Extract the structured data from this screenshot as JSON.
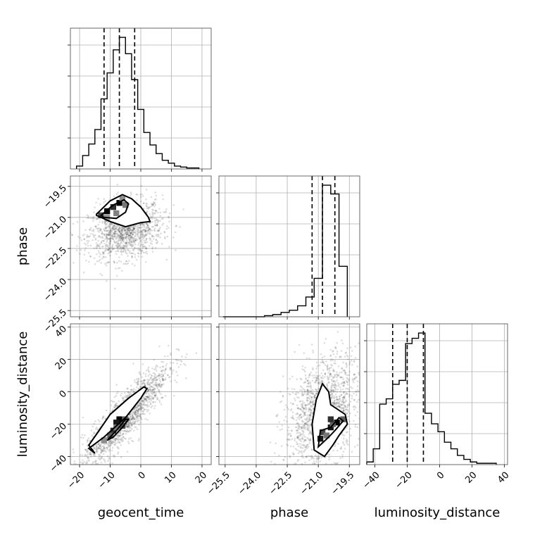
{
  "chart_data": {
    "type": "corner",
    "parameters": [
      "geocent_time",
      "phase",
      "luminosity_distance"
    ],
    "axes": {
      "geocent_time": {
        "range": [
          -23,
          23
        ],
        "ticks": [
          -20,
          -10,
          0,
          10,
          20
        ],
        "tick_labels": [
          "−20",
          "−10",
          "0",
          "10",
          "20"
        ]
      },
      "phase": {
        "range": [
          -25.8,
          -19.0
        ],
        "ticks": [
          -25.5,
          -24.0,
          -22.5,
          -21.0,
          -19.5
        ],
        "tick_labels": [
          "−25.5",
          "−24.0",
          "−22.5",
          "−21.0",
          "−19.5"
        ]
      },
      "luminosity_distance": {
        "range": [
          -45,
          42
        ],
        "ticks": [
          -40,
          -20,
          0,
          20,
          40
        ],
        "tick_labels": [
          "−40",
          "−20",
          "0",
          "20",
          "40"
        ]
      }
    },
    "histograms": {
      "geocent_time": {
        "bin_edges": [
          -21,
          -19,
          -17,
          -15,
          -13,
          -11,
          -9,
          -7,
          -5,
          -3,
          -1,
          1,
          3,
          5,
          7,
          9,
          11,
          13,
          15,
          17,
          19
        ],
        "counts": [
          3,
          14,
          26,
          41,
          73,
          100,
          124,
          137,
          120,
          93,
          62,
          38,
          25,
          16,
          9,
          6,
          3,
          2,
          1,
          1
        ],
        "quantiles": [
          -12,
          -7,
          -2
        ]
      },
      "phase": {
        "bin_edges": [
          -25.6,
          -25.2,
          -24.8,
          -24.4,
          -24.0,
          -23.6,
          -23.2,
          -22.8,
          -22.4,
          -22.0,
          -21.6,
          -21.2,
          -20.8,
          -20.4,
          -20.0,
          -19.6
        ],
        "counts": [
          0,
          0,
          0,
          0,
          0,
          1,
          2,
          4,
          6,
          10,
          18,
          35,
          120,
          112,
          46
        ],
        "quantiles": [
          -21.3,
          -20.8,
          -20.2
        ]
      },
      "luminosity_distance": {
        "bin_edges": [
          -45,
          -41,
          -37,
          -33,
          -29,
          -25,
          -21,
          -17,
          -13,
          -9,
          -5,
          -1,
          3,
          7,
          11,
          15,
          19,
          23,
          27,
          31,
          35
        ],
        "counts": [
          2,
          12,
          46,
          50,
          61,
          64,
          92,
          96,
          100,
          39,
          31,
          25,
          17,
          12,
          7,
          4,
          2,
          1,
          1,
          1
        ],
        "quantiles": [
          -29,
          -20,
          -10
        ]
      }
    },
    "pairs": [
      {
        "x": "geocent_time",
        "y": "phase",
        "outer_contour": [
          [
            -14.5,
            -20.85
          ],
          [
            -10,
            -20.2
          ],
          [
            -6,
            -19.9
          ],
          [
            -3,
            -20.1
          ],
          [
            0,
            -20.5
          ],
          [
            2.5,
            -21.0
          ],
          [
            3,
            -21.2
          ],
          [
            0,
            -21.25
          ],
          [
            -5,
            -21.45
          ],
          [
            -10,
            -21.2
          ],
          [
            -14.5,
            -20.9
          ]
        ],
        "inner_contour": [
          [
            -13,
            -20.9
          ],
          [
            -9,
            -20.4
          ],
          [
            -5.5,
            -20.15
          ],
          [
            -4,
            -20.35
          ],
          [
            -5,
            -20.75
          ],
          [
            -8,
            -21.05
          ],
          [
            -12,
            -21.0
          ],
          [
            -13,
            -20.9
          ]
        ],
        "dense_cells": [
          [
            -13,
            -20.9,
            0.7
          ],
          [
            -11,
            -20.7,
            1.0
          ],
          [
            -9,
            -20.5,
            0.8
          ],
          [
            -7,
            -20.3,
            1.0
          ],
          [
            -5,
            -20.4,
            0.5
          ],
          [
            -8,
            -20.8,
            0.45
          ],
          [
            -11,
            -21.0,
            0.35
          ],
          [
            -6,
            -20.1,
            0.4
          ]
        ],
        "scatter": {
          "center": [
            -5,
            -21.6
          ],
          "spread": [
            6,
            0.7
          ],
          "correlation": 0.2,
          "count": 1400
        }
      },
      {
        "x": "geocent_time",
        "y": "luminosity_distance",
        "outer_contour": [
          [
            -17,
            -35
          ],
          [
            -12,
            -28
          ],
          [
            -5,
            -16
          ],
          [
            0,
            -4
          ],
          [
            2,
            2
          ],
          [
            1,
            3
          ],
          [
            -4,
            -4
          ],
          [
            -10,
            -14
          ],
          [
            -14,
            -25
          ],
          [
            -17,
            -33
          ],
          [
            -15,
            -38
          ],
          [
            -17,
            -35
          ]
        ],
        "inner_contour": [
          [
            -11,
            -30
          ],
          [
            -8,
            -24
          ],
          [
            -5,
            -17
          ],
          [
            -4,
            -17
          ],
          [
            -6,
            -22
          ],
          [
            -9,
            -28
          ],
          [
            -11,
            -30
          ]
        ],
        "dense_cells": [
          [
            -7,
            -17,
            1.0
          ],
          [
            -8,
            -19,
            0.9
          ],
          [
            -6,
            -21,
            0.7
          ],
          [
            -9,
            -24,
            0.8
          ],
          [
            -10,
            -27,
            0.6
          ],
          [
            -5,
            -17,
            0.6
          ],
          [
            -12,
            -30,
            0.4
          ],
          [
            -8,
            -22,
            0.5
          ]
        ],
        "scatter": {
          "center": [
            -5,
            -15
          ],
          "spread": [
            7,
            16
          ],
          "correlation": 0.88,
          "count": 1500
        }
      },
      {
        "x": "phase",
        "y": "luminosity_distance",
        "outer_contour": [
          [
            -21.2,
            -36
          ],
          [
            -21.3,
            -20
          ],
          [
            -21.1,
            -5
          ],
          [
            -20.8,
            5
          ],
          [
            -20.5,
            0
          ],
          [
            -20.4,
            -8
          ],
          [
            -19.7,
            -14
          ],
          [
            -19.6,
            -20
          ],
          [
            -20.0,
            -27
          ],
          [
            -20.3,
            -33
          ],
          [
            -20.7,
            -40
          ],
          [
            -21.2,
            -36
          ]
        ],
        "inner_contour": [
          [
            -21.0,
            -34
          ],
          [
            -20.9,
            -24
          ],
          [
            -20.4,
            -22
          ],
          [
            -20.0,
            -16
          ],
          [
            -19.8,
            -18
          ],
          [
            -20.2,
            -24
          ],
          [
            -20.5,
            -28
          ],
          [
            -21.0,
            -34
          ]
        ],
        "dense_cells": [
          [
            -20.9,
            -29,
            0.9
          ],
          [
            -20.8,
            -25,
            0.7
          ],
          [
            -20.4,
            -22,
            0.9
          ],
          [
            -20.1,
            -19,
            1.0
          ],
          [
            -19.8,
            -17,
            0.6
          ],
          [
            -20.6,
            -27,
            0.5
          ],
          [
            -20.3,
            -20,
            0.6
          ],
          [
            -20.4,
            -17,
            0.8
          ]
        ],
        "scatter": {
          "center": [
            -20.8,
            -12
          ],
          "spread": [
            0.9,
            17
          ],
          "correlation": 0.35,
          "count": 1500
        }
      }
    ]
  }
}
